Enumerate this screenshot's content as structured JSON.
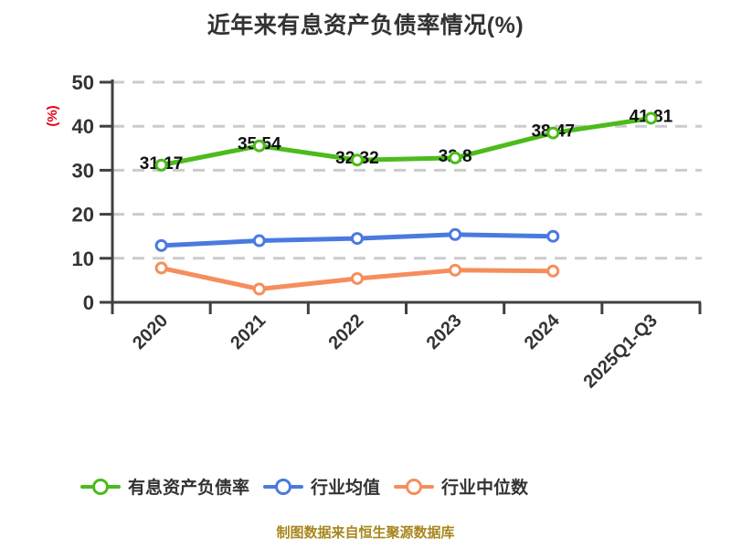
{
  "title": "近年来有息资产负债率情况(%)",
  "footer_note": "制图数据来自恒生聚源数据库",
  "colors": {
    "title_text": "#333333",
    "axis": "#404040",
    "gridline": "#cccccc",
    "data_label": "#111111",
    "y_axis_unit": "#e60012",
    "footer": "#a8861d"
  },
  "chart_data": {
    "type": "line",
    "title": "近年来有息资产负债率情况(%)",
    "xlabel": "",
    "ylabel": "(%)",
    "categories": [
      "2020",
      "2021",
      "2022",
      "2023",
      "2024",
      "2025Q1-Q3"
    ],
    "y_ticks": [
      0,
      10,
      20,
      30,
      40,
      50
    ],
    "ylim": [
      0,
      50
    ],
    "grid": "horizontal-dashed",
    "legend_position": "bottom",
    "series": [
      {
        "name": "有息资产负债率",
        "color": "#4cbb1b",
        "values": [
          31.17,
          35.54,
          32.32,
          32.8,
          38.47,
          41.81
        ],
        "labeled": true,
        "marker": "circle-white-fill"
      },
      {
        "name": "行业均值",
        "color": "#4a7ae0",
        "values": [
          12.9,
          14.0,
          14.5,
          15.4,
          15.0
        ],
        "labeled": false,
        "marker": "circle-white-fill"
      },
      {
        "name": "行业中位数",
        "color": "#f58e5c",
        "values": [
          7.8,
          3.0,
          5.4,
          7.3,
          7.1
        ],
        "labeled": false,
        "marker": "circle-white-fill"
      }
    ]
  }
}
